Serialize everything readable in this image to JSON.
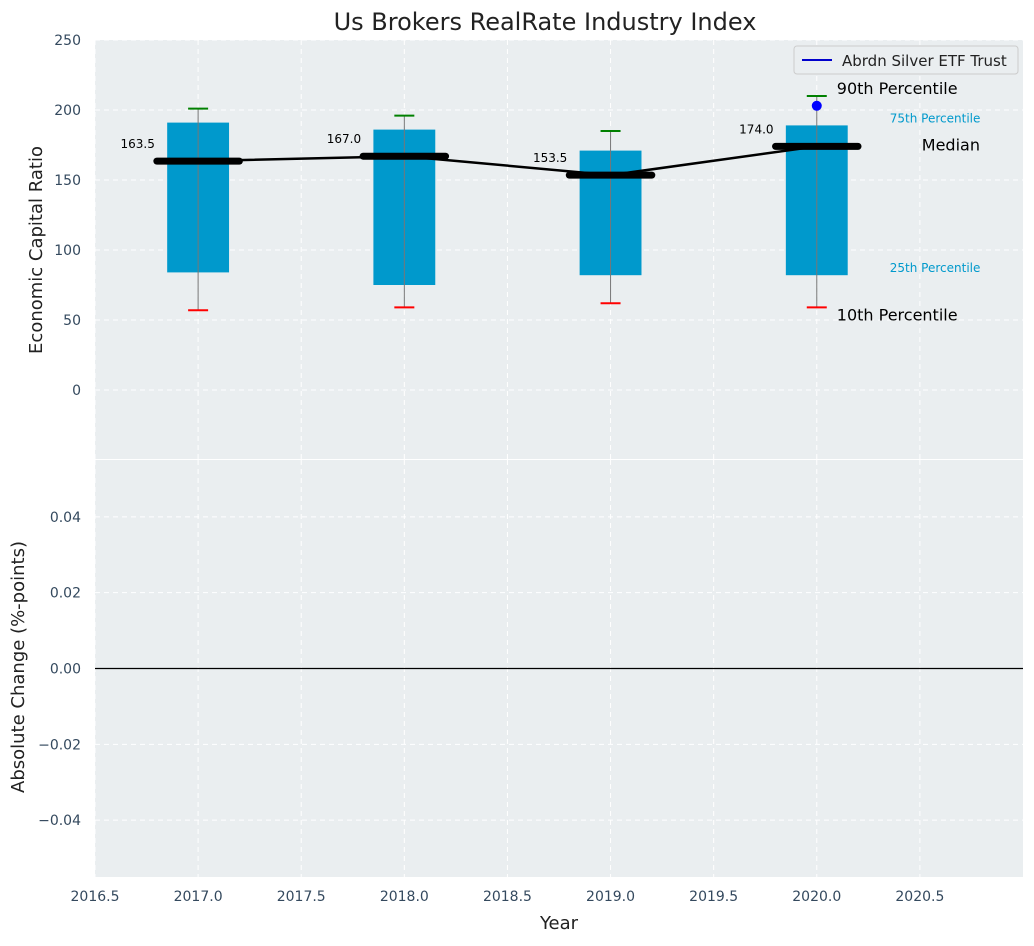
{
  "chart_data": {
    "type": "box",
    "title": "Us Brokers RealRate Industry Index",
    "xlabel": "Year",
    "top_panel": {
      "ylabel": "Economic Capital Ratio",
      "ylim": [
        -50,
        250
      ],
      "yticks": [
        "0",
        "50",
        "100",
        "150",
        "200",
        "250"
      ],
      "ytick_values": [
        0,
        50,
        100,
        150,
        200,
        250
      ],
      "grid": true,
      "boxes": [
        {
          "x": 2017.0,
          "p10": 57,
          "p25": 84,
          "median": 163.5,
          "p75": 191,
          "p90": 201,
          "median_label": "163.5"
        },
        {
          "x": 2018.0,
          "p10": 59,
          "p25": 75,
          "median": 167.0,
          "p75": 186,
          "p90": 196,
          "median_label": "167.0"
        },
        {
          "x": 2019.0,
          "p10": 62,
          "p25": 82,
          "median": 153.5,
          "p75": 171,
          "p90": 185,
          "median_label": "153.5"
        },
        {
          "x": 2020.0,
          "p10": 59,
          "p25": 82,
          "median": 174.0,
          "p75": 189,
          "p90": 210,
          "median_label": "174.0"
        }
      ],
      "series": [
        {
          "name": "Abrdn Silver ETF Trust",
          "x": [
            2020.0
          ],
          "values": [
            203
          ],
          "color": "#0000ff"
        }
      ],
      "median_line": {
        "x": [
          2017.0,
          2018.0,
          2019.0,
          2020.0
        ],
        "values": [
          163.5,
          167.0,
          153.5,
          174.0
        ]
      },
      "annotations": {
        "p90": "90th Percentile",
        "p75": "75th Percentile",
        "median": "Median",
        "p25": "25th Percentile",
        "p10": "10th Percentile"
      },
      "legend": {
        "placement": "top-right",
        "entries": [
          "Abrdn Silver ETF Trust"
        ]
      }
    },
    "bottom_panel": {
      "ylabel": "Absolute Change (%-points)",
      "ylim": [
        -0.055,
        0.055
      ],
      "yticks": [
        "−0.04",
        "−0.02",
        "0.00",
        "0.02",
        "0.04"
      ],
      "ytick_values": [
        -0.04,
        -0.02,
        0.0,
        0.02,
        0.04
      ],
      "zero_line": true,
      "grid": true
    },
    "xlim": [
      2016.5,
      2021.0
    ],
    "xticks": [
      "2016.5",
      "2017.0",
      "2017.5",
      "2018.0",
      "2018.5",
      "2019.0",
      "2019.5",
      "2020.0",
      "2020.5"
    ],
    "xtick_values": [
      2016.5,
      2017.0,
      2017.5,
      2018.0,
      2018.5,
      2019.0,
      2019.5,
      2020.0,
      2020.5
    ]
  },
  "colors": {
    "panel_bg": "#eaeef0",
    "box": "#0099cc",
    "whisker_high": "#008000",
    "whisker_low": "#ff0000",
    "median": "#000000",
    "percentile_text": "#0099cc",
    "tick_text": "#34495e"
  }
}
